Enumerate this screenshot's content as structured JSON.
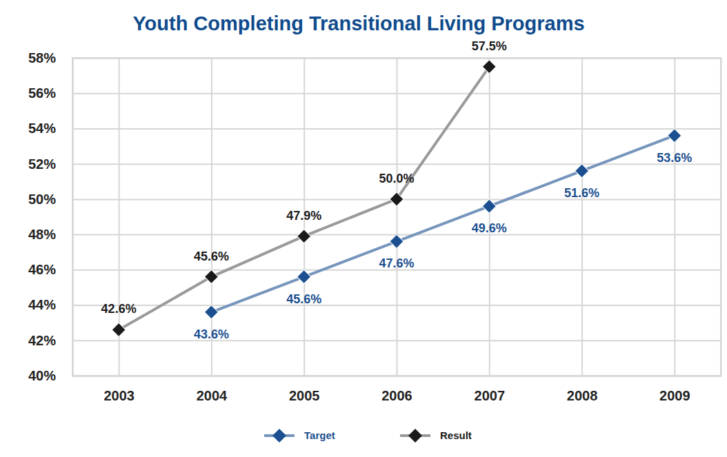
{
  "chart_data": {
    "type": "line",
    "title": "Youth Completing Transitional Living Programs",
    "categories": [
      "2003",
      "2004",
      "2005",
      "2006",
      "2007",
      "2008",
      "2009"
    ],
    "series": [
      {
        "name": "Target",
        "color": "#1b4f8f",
        "marker": "diamond",
        "line_style": "solid",
        "values": [
          null,
          43.6,
          45.6,
          47.6,
          49.6,
          51.6,
          53.6
        ],
        "value_labels": [
          null,
          "43.6%",
          "45.6%",
          "47.6%",
          "49.6%",
          "51.6%",
          "53.6%"
        ]
      },
      {
        "name": "Result",
        "color": "#1a1a1a",
        "marker": "diamond",
        "line_style": "solid",
        "values": [
          42.6,
          45.6,
          47.9,
          50.0,
          57.5,
          null,
          null
        ],
        "value_labels": [
          "42.6%",
          "45.6%",
          "47.9%",
          "50.0%",
          "57.5%",
          null,
          null
        ]
      }
    ],
    "ylim": [
      40,
      58
    ],
    "yticks": [
      {
        "value": 40,
        "label": "40%"
      },
      {
        "value": 42,
        "label": "42%"
      },
      {
        "value": 44,
        "label": "44%"
      },
      {
        "value": 46,
        "label": "46%"
      },
      {
        "value": 48,
        "label": "48%"
      },
      {
        "value": 50,
        "label": "50%"
      },
      {
        "value": 52,
        "label": "52%"
      },
      {
        "value": 54,
        "label": "54%"
      },
      {
        "value": 56,
        "label": "56%"
      },
      {
        "value": 58,
        "label": "58%"
      }
    ],
    "grid": true,
    "data_labels": true,
    "legend": "bottom"
  }
}
